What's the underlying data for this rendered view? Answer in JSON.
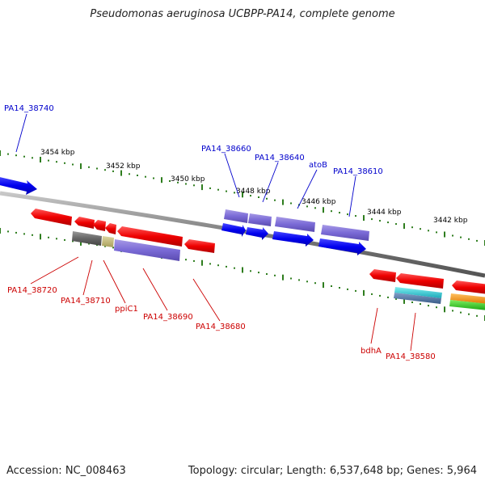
{
  "title": "Pseudomonas aeruginosa UCBPP-PA14, complete genome",
  "footer": {
    "accession": "Accession: NC_008463",
    "topology": "Topology: circular; Length: 6,537,648 bp; Genes: 5,964"
  },
  "scale_labels": [
    "3454 kbp",
    "3452 kbp",
    "3450 kbp",
    "3448 kbp",
    "3446 kbp",
    "3444 kbp",
    "3442 kbp"
  ],
  "forward_gene_labels": [
    "PA14_38740",
    "PA14_38660",
    "PA14_38640",
    "atoB",
    "PA14_38610"
  ],
  "reverse_gene_labels": [
    "PA14_38720",
    "PA14_38710",
    "ppiC1",
    "PA14_38690",
    "PA14_38680",
    "bdhA",
    "PA14_38580"
  ],
  "colors": {
    "forward_label": "#0000cc",
    "reverse_label": "#cc0000",
    "backbone": "#8a8a8a",
    "tick": "#2e7d1e"
  }
}
